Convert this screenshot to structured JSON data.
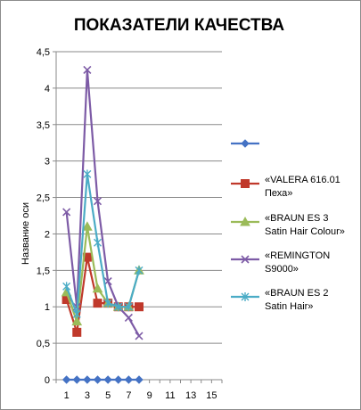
{
  "chart_data": {
    "type": "line",
    "title": "ПОКАЗАТЕЛИ КАЧЕСТВА",
    "ylabel": "Название оси",
    "xlabel": "",
    "ylim": [
      0,
      4.5
    ],
    "ystep": 0.5,
    "y_ticks": [
      "0",
      "0,5",
      "1",
      "1,5",
      "2",
      "2,5",
      "3",
      "3,5",
      "4",
      "4,5"
    ],
    "x_range": [
      0,
      16
    ],
    "x_ticks": [
      "1",
      "3",
      "5",
      "7",
      "9",
      "11",
      "13",
      "15"
    ],
    "x_tick_values": [
      1,
      3,
      5,
      7,
      9,
      11,
      13,
      15
    ],
    "grid": true,
    "legend_position": "right",
    "series": [
      {
        "name": "",
        "color": "#4472c4",
        "marker": "diamond",
        "x": [
          1,
          2,
          3,
          4,
          5,
          6,
          7,
          8
        ],
        "values": [
          0,
          0,
          0,
          0,
          0,
          0,
          0,
          0
        ]
      },
      {
        "name": "«VALERA 616.01 Пеха»",
        "legend_lines": [
          "«VALERA 616.01",
          "Пеха»"
        ],
        "color": "#c0392b",
        "marker": "square",
        "x": [
          1,
          2,
          3,
          4,
          5,
          6,
          7,
          8
        ],
        "values": [
          1.1,
          0.65,
          1.68,
          1.05,
          1.05,
          1.0,
          1.0,
          1.0
        ]
      },
      {
        "name": "«BRAUN ES 3 Satin Hair Colour»",
        "legend_lines": [
          "«BRAUN ES 3",
          "Satin Hair Colour»"
        ],
        "color": "#9bbb59",
        "marker": "triangle",
        "x": [
          1,
          2,
          3,
          4,
          5,
          6,
          7,
          8
        ],
        "values": [
          1.2,
          0.8,
          2.1,
          1.25,
          1.05,
          1.0,
          1.0,
          1.5
        ]
      },
      {
        "name": "«REMINGTON S9000»",
        "legend_lines": [
          "«REMINGTON",
          "S9000»"
        ],
        "color": "#7d5ba6",
        "marker": "x",
        "x": [
          1,
          2,
          3,
          4,
          5,
          6,
          7,
          8
        ],
        "values": [
          2.3,
          1.0,
          4.25,
          2.45,
          1.35,
          1.0,
          0.85,
          0.6
        ]
      },
      {
        "name": "«BRAUN ES 2 Satin Hair»",
        "legend_lines": [
          "«BRAUN ES 2",
          "Satin Hair»"
        ],
        "color": "#4bacc6",
        "marker": "star",
        "x": [
          1,
          2,
          3,
          4,
          5,
          6,
          7,
          8
        ],
        "values": [
          1.28,
          0.9,
          2.82,
          1.88,
          1.05,
          1.0,
          1.0,
          1.5
        ]
      }
    ]
  }
}
